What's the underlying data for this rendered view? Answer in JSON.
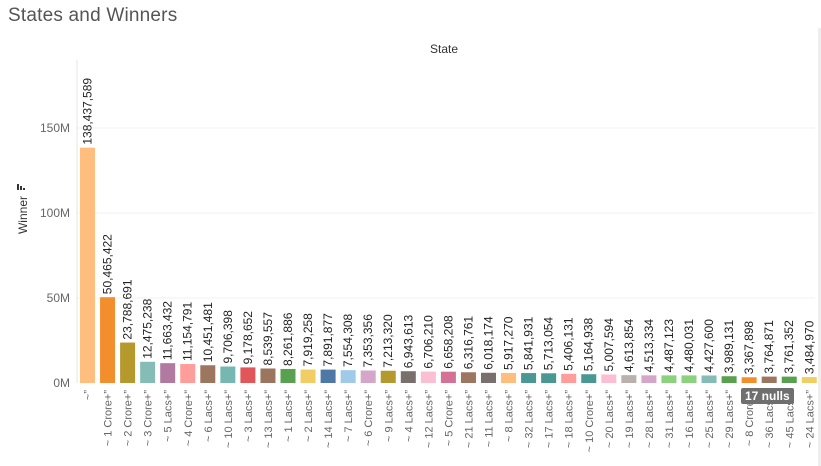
{
  "dashboard": {
    "title": "States and Winners",
    "nulls_indicator": "17 nulls"
  },
  "chart_data": {
    "type": "bar",
    "title": "",
    "column_header": "State",
    "xlabel": "",
    "ylabel": "Winner",
    "ylim": [
      0,
      190000000
    ],
    "yticks": [
      0,
      50000000,
      100000000,
      150000000
    ],
    "ytick_labels": [
      "0M",
      "50M",
      "100M",
      "150M"
    ],
    "grid": true,
    "categories": [
      "~”",
      "~ 1 Crore+”",
      "~ 2 Crore+”",
      "~ 3 Crore+”",
      "~ 5 Lacs+”",
      "~ 4 Crore+”",
      "~ 6 Lacs+”",
      "~ 10 Lacs+”",
      "~ 3 Lacs+”",
      "~ 13 Lacs+”",
      "~ 1 Lacs+”",
      "~ 2 Lacs+”",
      "~ 14 Lacs+”",
      "~ 7 Lacs+”",
      "~ 6 Crore+”",
      "~ 9 Lacs+”",
      "~ 4 Lacs+”",
      "~ 12 Lacs+”",
      "~ 5 Crore+”",
      "~ 21 Lacs+”",
      "~ 11 Lacs+”",
      "~ 8 Lacs+”",
      "~ 32 Lacs+”",
      "~ 17 Lacs+”",
      "~ 18 Lacs+”",
      "~ 10 Crore+”",
      "~ 20 Lacs+”",
      "~ 19 Lacs+”",
      "~ 28 Lacs+”",
      "~ 31 Lacs+”",
      "~ 16 Lacs+”",
      "~ 25 Lacs+”",
      "~ 29 Lacs+”",
      "~ 8 Crore+”",
      "~ 36 Lacs+”",
      "~ 45 Lacs+”",
      "~ 24 Lacs+”"
    ],
    "values": [
      138437589,
      50465422,
      23788691,
      12475238,
      11663432,
      11154791,
      10451481,
      9706398,
      9178652,
      8539557,
      8261886,
      7919258,
      7891877,
      7554308,
      7353356,
      7213320,
      6943613,
      6706210,
      6658208,
      6316761,
      6018174,
      5917270,
      5841931,
      5713054,
      5406131,
      5164938,
      5007594,
      4613854,
      4513334,
      4487123,
      4480031,
      4427600,
      3989131,
      3367898,
      3764871,
      3761352,
      3484970
    ],
    "value_labels": [
      "138,437,589",
      "50,465,422",
      "23,788,691",
      "12,475,238",
      "11,663,432",
      "11,154,791",
      "10,451,481",
      "9,706,398",
      "9,178,652",
      "8,539,557",
      "8,261,886",
      "7,919,258",
      "7,891,877",
      "7,554,308",
      "7,353,356",
      "7,213,320",
      "6,943,613",
      "6,706,210",
      "6,658,208",
      "6,316,761",
      "6,018,174",
      "5,917,270",
      "5,841,931",
      "5,713,054",
      "5,406,131",
      "5,164,938",
      "5,007,594",
      "4,613,854",
      "4,513,334",
      "4,487,123",
      "4,480,031",
      "4,427,600",
      "3,989,131",
      "3,367,898",
      "3,764,871",
      "3,761,352",
      "3,484,970"
    ],
    "colors": [
      "#ffbe7d",
      "#f28e2b",
      "#b6992d",
      "#86bcb6",
      "#b07aa1",
      "#ff9d9a",
      "#9d7660",
      "#76b7b2",
      "#e15759",
      "#9c755f",
      "#59a14f",
      "#f1ce63",
      "#4e79a7",
      "#a0cbe8",
      "#d4a6c8",
      "#b6992d",
      "#79706e",
      "#fabfd2",
      "#d37295",
      "#9d7660",
      "#79706e",
      "#ffbe7d",
      "#499894",
      "#499894",
      "#ff9d9a",
      "#499894",
      "#fabfd2",
      "#bab0ac",
      "#d4a6c8",
      "#8cd17d",
      "#8cd17d",
      "#86bcb6",
      "#59a14f",
      "#f28e2b",
      "#9d7660",
      "#59a14f",
      "#f1ce63"
    ]
  }
}
